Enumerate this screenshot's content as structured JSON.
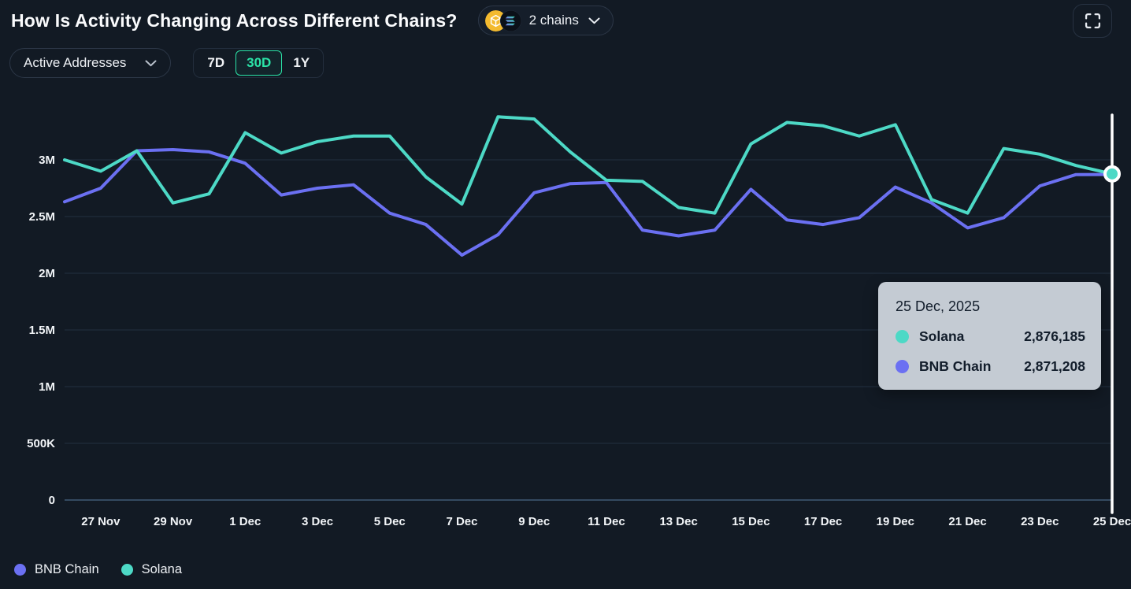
{
  "header": {
    "title": "How Is Activity Changing Across Different Chains?",
    "chains_selector": {
      "label": "2 chains",
      "icons": [
        "bnb-chain-coin",
        "solana-coin"
      ]
    }
  },
  "controls": {
    "metric_dropdown": {
      "value": "Active Addresses"
    },
    "time_ranges": [
      {
        "label": "7D",
        "selected": false
      },
      {
        "label": "30D",
        "selected": true
      },
      {
        "label": "1Y",
        "selected": false
      }
    ]
  },
  "tooltip": {
    "date": "25 Dec, 2025",
    "rows": [
      {
        "name": "Solana",
        "value": "2,876,185",
        "color": "#4DD9C6"
      },
      {
        "name": "BNB Chain",
        "value": "2,871,208",
        "color": "#6B70F2"
      }
    ]
  },
  "colors": {
    "background": "#121A24",
    "accent_green": "#2BE3A7",
    "solana_line": "#4DD9C6",
    "bnb_line": "#6B70F2",
    "bnb_logo_yellow": "#F3BA2F",
    "tooltip_bg": "#C4CBD3",
    "crosshair": "#FFFFFF",
    "gridline": "rgba(110,150,200,0.18)",
    "zero_line": "rgba(120,170,220,0.45)"
  },
  "chart_data": {
    "type": "line",
    "title": "How Is Activity Changing Across Different Chains?",
    "metric": "Active Addresses",
    "selected_range": "30D",
    "grid": "horizontal",
    "legend_position": "bottom-left",
    "x": [
      "26 Nov",
      "27 Nov",
      "28 Nov",
      "29 Nov",
      "30 Nov",
      "1 Dec",
      "2 Dec",
      "3 Dec",
      "4 Dec",
      "5 Dec",
      "6 Dec",
      "7 Dec",
      "8 Dec",
      "9 Dec",
      "10 Dec",
      "11 Dec",
      "12 Dec",
      "13 Dec",
      "14 Dec",
      "15 Dec",
      "16 Dec",
      "17 Dec",
      "18 Dec",
      "19 Dec",
      "20 Dec",
      "21 Dec",
      "22 Dec",
      "23 Dec",
      "24 Dec",
      "25 Dec"
    ],
    "x_axis": {
      "tick_labels": [
        "27 Nov",
        "29 Nov",
        "1 Dec",
        "3 Dec",
        "5 Dec",
        "7 Dec",
        "9 Dec",
        "11 Dec",
        "13 Dec",
        "15 Dec",
        "17 Dec",
        "19 Dec",
        "21 Dec",
        "23 Dec",
        "25 Dec"
      ],
      "first_tick_index": 1,
      "tick_every": 2
    },
    "y_axis": {
      "unit": "active addresses (millions)",
      "ylim": [
        0,
        3.45
      ],
      "ticks": [
        {
          "value": 0,
          "label": "0"
        },
        {
          "value": 0.5,
          "label": "500K"
        },
        {
          "value": 1,
          "label": "1M"
        },
        {
          "value": 1.5,
          "label": "1.5M"
        },
        {
          "value": 2,
          "label": "2M"
        },
        {
          "value": 2.5,
          "label": "2.5M"
        },
        {
          "value": 3,
          "label": "3M"
        }
      ]
    },
    "series": [
      {
        "name": "BNB Chain",
        "color": "#6B70F2",
        "values_millions": [
          2.63,
          2.75,
          3.08,
          3.09,
          3.07,
          2.97,
          2.69,
          2.75,
          2.78,
          2.53,
          2.43,
          2.16,
          2.34,
          2.71,
          2.79,
          2.8,
          2.38,
          2.33,
          2.38,
          2.74,
          2.47,
          2.43,
          2.49,
          2.76,
          2.62,
          2.4,
          2.49,
          2.77,
          2.87,
          2.871208
        ]
      },
      {
        "name": "Solana",
        "color": "#4DD9C6",
        "values_millions": [
          3.0,
          2.9,
          3.08,
          2.62,
          2.7,
          3.24,
          3.06,
          3.16,
          3.21,
          3.21,
          2.85,
          2.61,
          3.38,
          3.36,
          3.07,
          2.82,
          2.81,
          2.58,
          2.53,
          3.14,
          3.33,
          3.3,
          3.21,
          3.31,
          2.65,
          2.53,
          3.1,
          3.05,
          2.95,
          2.876185
        ]
      }
    ],
    "highlight": {
      "point_index": 29,
      "crosshair": true,
      "dot_on_series": "Solana"
    }
  },
  "legend": {
    "items": [
      "BNB Chain",
      "Solana"
    ]
  }
}
